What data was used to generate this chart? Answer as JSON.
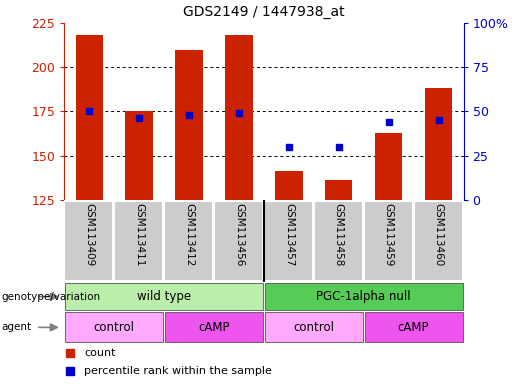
{
  "title": "GDS2149 / 1447938_at",
  "samples": [
    "GSM113409",
    "GSM113411",
    "GSM113412",
    "GSM113456",
    "GSM113457",
    "GSM113458",
    "GSM113459",
    "GSM113460"
  ],
  "counts": [
    218,
    175,
    210,
    218,
    141,
    136,
    163,
    188
  ],
  "percentile_ranks": [
    50,
    46,
    48,
    49,
    30,
    30,
    44,
    45
  ],
  "y_min": 125,
  "y_max": 225,
  "y_ticks": [
    125,
    150,
    175,
    200,
    225
  ],
  "right_y_ticks": [
    0,
    25,
    50,
    75,
    100
  ],
  "right_y_labels": [
    "0",
    "25",
    "50",
    "75",
    "100%"
  ],
  "bar_color": "#cc2200",
  "dot_color": "#0000cc",
  "bar_width": 0.55,
  "genotype_groups": [
    {
      "label": "wild type",
      "start": 0,
      "end": 4,
      "color": "#bbeeaa"
    },
    {
      "label": "PGC-1alpha null",
      "start": 4,
      "end": 8,
      "color": "#55cc55"
    }
  ],
  "agent_groups": [
    {
      "label": "control",
      "start": 0,
      "end": 2,
      "color": "#ffaaff"
    },
    {
      "label": "cAMP",
      "start": 2,
      "end": 4,
      "color": "#ee55ee"
    },
    {
      "label": "control",
      "start": 4,
      "end": 6,
      "color": "#ffaaff"
    },
    {
      "label": "cAMP",
      "start": 6,
      "end": 8,
      "color": "#ee55ee"
    }
  ],
  "legend_count_color": "#cc2200",
  "legend_dot_color": "#0000cc",
  "background_color": "#ffffff",
  "sample_bg_color": "#cccccc",
  "grid_color": "#000000",
  "label_box_border": "#888888"
}
